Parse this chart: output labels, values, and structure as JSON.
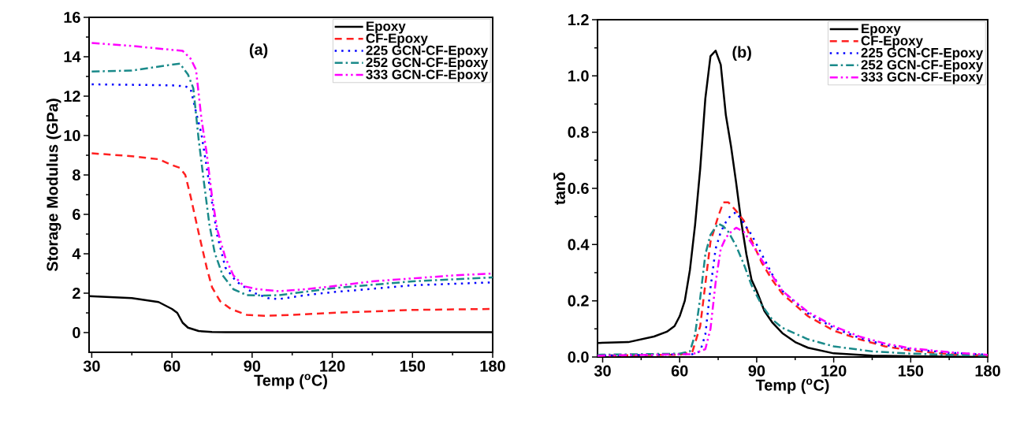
{
  "chart_data": [
    {
      "type": "line",
      "xlabel": "Temp ($^{o}$C)",
      "ylabel": "Storage Modulus (GPa)",
      "annotations": [
        "(a)"
      ],
      "xlim": [
        29,
        180
      ],
      "ylim": [
        -1,
        16
      ],
      "xticks": [
        30,
        60,
        90,
        120,
        150,
        180
      ],
      "yticks": [
        0,
        2,
        4,
        6,
        8,
        10,
        12,
        14,
        16
      ],
      "legend": "top right",
      "series": [
        {
          "name": "Epoxy",
          "color": "#000000",
          "line_style": "solid",
          "x": [
            29,
            45,
            55,
            60,
            62,
            64,
            66,
            70,
            75,
            80,
            100,
            130,
            180
          ],
          "values": [
            1.85,
            1.75,
            1.55,
            1.2,
            1.0,
            0.5,
            0.25,
            0.08,
            0.03,
            0.02,
            0.02,
            0.02,
            0.02
          ]
        },
        {
          "name": "CF-Epoxy",
          "color": "#ff2020",
          "line_style": "dashed",
          "x": [
            30,
            45,
            55,
            60,
            63,
            65,
            67,
            70,
            73,
            75,
            78,
            82,
            88,
            95,
            105,
            120,
            150,
            180
          ],
          "values": [
            9.1,
            8.95,
            8.8,
            8.5,
            8.36,
            8.0,
            6.9,
            5.06,
            3.3,
            2.3,
            1.6,
            1.2,
            0.9,
            0.85,
            0.9,
            1.0,
            1.15,
            1.2
          ]
        },
        {
          "name": "225 GCN-CF-Epoxy",
          "color": "#0000ff",
          "line_style": "dotted",
          "x": [
            30,
            60,
            65,
            67,
            69,
            71,
            73,
            75,
            77,
            80,
            84,
            90,
            96,
            100,
            110,
            120,
            150,
            180
          ],
          "values": [
            12.6,
            12.55,
            12.5,
            12.37,
            11.2,
            10.1,
            8.4,
            6.6,
            4.9,
            3.3,
            2.6,
            2.05,
            1.75,
            1.7,
            1.9,
            2.05,
            2.4,
            2.55
          ]
        },
        {
          "name": "252 GCN-CF-Epoxy",
          "color": "#1a8a8a",
          "line_style": "dashdot",
          "x": [
            30,
            45,
            60,
            63,
            66,
            68,
            70,
            72,
            74,
            76,
            79,
            83,
            88,
            95,
            100,
            120,
            150,
            180
          ],
          "values": [
            13.25,
            13.3,
            13.6,
            13.65,
            13.1,
            12.4,
            9.8,
            7.6,
            5.5,
            4.05,
            2.9,
            2.2,
            1.9,
            1.88,
            1.9,
            2.25,
            2.6,
            2.8
          ]
        },
        {
          "name": "333 GCN-CF-Epoxy",
          "color": "#ff00ff",
          "line_style": "dashdotdot",
          "x": [
            30,
            45,
            60,
            64,
            67,
            69,
            71,
            73,
            75,
            77,
            80,
            83,
            87,
            92,
            100,
            110,
            120,
            135,
            150,
            165,
            180
          ],
          "values": [
            14.7,
            14.55,
            14.35,
            14.3,
            13.9,
            13.35,
            10.9,
            9.1,
            6.9,
            5.2,
            3.8,
            2.9,
            2.35,
            2.2,
            2.1,
            2.2,
            2.35,
            2.6,
            2.75,
            2.9,
            3.0
          ]
        }
      ]
    },
    {
      "type": "line",
      "xlabel": "Temp ($^{o}$C)",
      "ylabel": "tanδ",
      "annotations": [
        "(b)"
      ],
      "xlim": [
        28,
        180
      ],
      "ylim": [
        0,
        1.2
      ],
      "xticks": [
        30,
        60,
        90,
        120,
        150,
        180
      ],
      "yticks": [
        {
          "value": 0,
          "label": "0.0"
        },
        0.2,
        0.4,
        0.6,
        0.8,
        {
          "value": 1,
          "label": "1.0"
        },
        1.2
      ],
      "legend": "top right",
      "series": [
        {
          "name": "Epoxy",
          "color": "#000000",
          "line_style": "solid",
          "x": [
            28,
            40,
            50,
            55,
            58,
            60,
            62,
            64,
            66,
            68,
            70,
            72,
            74,
            76,
            78,
            80,
            82,
            84,
            86,
            88,
            90,
            93,
            96,
            100,
            105,
            110,
            120,
            135,
            150,
            180
          ],
          "values": [
            0.05,
            0.053,
            0.073,
            0.09,
            0.11,
            0.145,
            0.2,
            0.31,
            0.47,
            0.67,
            0.92,
            1.07,
            1.09,
            1.04,
            0.86,
            0.75,
            0.62,
            0.48,
            0.365,
            0.275,
            0.235,
            0.164,
            0.124,
            0.085,
            0.053,
            0.033,
            0.013,
            0.005,
            0.003,
            0
          ]
        },
        {
          "name": "CF-Epoxy",
          "color": "#ff2020",
          "line_style": "dashed",
          "x": [
            28,
            60,
            65,
            68,
            70,
            72,
            75,
            77,
            79,
            82,
            85,
            88,
            92,
            96,
            100,
            110,
            120,
            130,
            140,
            150,
            165,
            180
          ],
          "values": [
            0.005,
            0.008,
            0.02,
            0.11,
            0.26,
            0.41,
            0.5,
            0.55,
            0.55,
            0.52,
            0.485,
            0.415,
            0.335,
            0.275,
            0.225,
            0.145,
            0.094,
            0.063,
            0.038,
            0.023,
            0.01,
            0.005
          ]
        },
        {
          "name": "225 GCN-CF-Epoxy",
          "color": "#0000ff",
          "line_style": "dotted",
          "x": [
            28,
            65,
            68,
            70,
            72,
            74,
            76,
            78,
            80,
            82,
            85,
            88,
            92,
            96,
            100,
            110,
            120,
            130,
            140,
            150,
            165,
            180
          ],
          "values": [
            0.005,
            0.01,
            0.02,
            0.08,
            0.245,
            0.385,
            0.445,
            0.48,
            0.505,
            0.515,
            0.475,
            0.435,
            0.365,
            0.295,
            0.235,
            0.155,
            0.104,
            0.068,
            0.043,
            0.028,
            0.015,
            0.008
          ]
        },
        {
          "name": "252 GCN-CF-Epoxy",
          "color": "#1a8a8a",
          "line_style": "dashdot",
          "x": [
            28,
            60,
            64,
            66,
            68,
            70,
            72,
            75,
            77,
            79,
            82,
            85,
            88,
            92,
            96,
            100,
            110,
            120,
            135,
            150,
            165,
            180
          ],
          "values": [
            0.008,
            0.012,
            0.02,
            0.08,
            0.21,
            0.365,
            0.435,
            0.475,
            0.465,
            0.445,
            0.395,
            0.33,
            0.255,
            0.184,
            0.134,
            0.104,
            0.063,
            0.038,
            0.02,
            0.012,
            0.008,
            0.005
          ]
        },
        {
          "name": "333 GCN-CF-Epoxy",
          "color": "#ff00ff",
          "line_style": "dashdotdot",
          "x": [
            28,
            65,
            70,
            72,
            74,
            76,
            78,
            80,
            82,
            85,
            88,
            92,
            96,
            100,
            110,
            120,
            130,
            140,
            150,
            165,
            180
          ],
          "values": [
            0.005,
            0.01,
            0.028,
            0.1,
            0.265,
            0.385,
            0.425,
            0.445,
            0.46,
            0.445,
            0.405,
            0.345,
            0.29,
            0.235,
            0.16,
            0.11,
            0.073,
            0.048,
            0.031,
            0.017,
            0.008
          ]
        }
      ]
    }
  ]
}
